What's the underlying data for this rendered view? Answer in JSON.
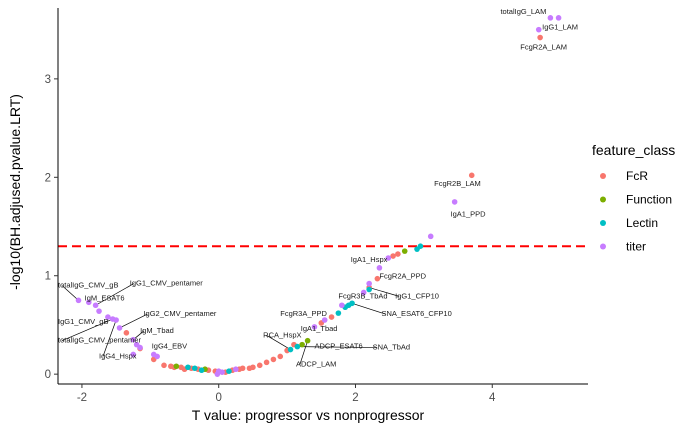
{
  "chart_data": {
    "type": "scatter",
    "title": "",
    "xlabel": "T value: progressor vs nonprogressor",
    "ylabel": "-log10(BH.adjused.pvalue.LRT)",
    "xlim": [
      -2.35,
      5.4
    ],
    "ylim": [
      -0.1,
      3.72
    ],
    "x_ticks": [
      -2,
      0,
      2,
      4
    ],
    "y_ticks": [
      0,
      1,
      2,
      3
    ],
    "grid": false,
    "threshold": {
      "y": 1.3,
      "color": "#ff0000",
      "style": "dashed"
    },
    "legend": {
      "title": "feature_class",
      "position": "right",
      "entries": [
        {
          "name": "FcR",
          "color": "#f8766d"
        },
        {
          "name": "Function",
          "color": "#7cae00"
        },
        {
          "name": "Lectin",
          "color": "#00bfc4"
        },
        {
          "name": "titer",
          "color": "#c77cff"
        }
      ]
    },
    "series": [
      {
        "name": "FcR",
        "points": [
          [
            4.7,
            3.42
          ],
          [
            3.7,
            2.02
          ],
          [
            2.62,
            1.22
          ],
          [
            2.55,
            1.2
          ],
          [
            2.32,
            0.97
          ],
          [
            2.2,
            0.88
          ],
          [
            1.65,
            0.58
          ],
          [
            1.5,
            0.52
          ],
          [
            1.1,
            0.3
          ],
          [
            1.0,
            0.24
          ],
          [
            0.8,
            0.15
          ],
          [
            0.7,
            0.12
          ],
          [
            0.6,
            0.09
          ],
          [
            0.45,
            0.06
          ],
          [
            0.3,
            0.05
          ],
          [
            0.2,
            0.04
          ],
          [
            0.1,
            0.02
          ],
          [
            -0.05,
            0.03
          ],
          [
            -0.15,
            0.04
          ],
          [
            -0.3,
            0.05
          ],
          [
            -0.4,
            0.06
          ],
          [
            -0.5,
            0.05
          ],
          [
            -0.55,
            0.07
          ],
          [
            -0.65,
            0.07
          ],
          [
            -0.7,
            0.08
          ],
          [
            -0.8,
            0.09
          ],
          [
            -0.95,
            0.15
          ],
          [
            -1.15,
            0.26
          ],
          [
            -1.35,
            0.42
          ],
          [
            0.5,
            0.07
          ],
          [
            0.35,
            0.06
          ],
          [
            0.9,
            0.18
          ]
        ]
      },
      {
        "name": "Function",
        "points": [
          [
            2.72,
            1.25
          ],
          [
            1.3,
            0.34
          ],
          [
            1.22,
            0.3
          ],
          [
            -0.62,
            0.08
          ],
          [
            -0.2,
            0.05
          ]
        ]
      },
      {
        "name": "Lectin",
        "points": [
          [
            2.95,
            1.3
          ],
          [
            2.9,
            1.27
          ],
          [
            2.2,
            0.86
          ],
          [
            1.95,
            0.72
          ],
          [
            1.9,
            0.7
          ],
          [
            1.85,
            0.68
          ],
          [
            1.75,
            0.62
          ],
          [
            1.15,
            0.28
          ],
          [
            1.05,
            0.25
          ],
          [
            -0.35,
            0.06
          ],
          [
            -0.25,
            0.04
          ],
          [
            -0.45,
            0.07
          ],
          [
            0.15,
            0.03
          ]
        ]
      },
      {
        "name": "titer",
        "points": [
          [
            4.85,
            3.62
          ],
          [
            4.97,
            3.62
          ],
          [
            4.68,
            3.5
          ],
          [
            3.45,
            1.75
          ],
          [
            3.1,
            1.4
          ],
          [
            2.48,
            1.18
          ],
          [
            2.35,
            1.08
          ],
          [
            2.2,
            0.92
          ],
          [
            2.12,
            0.83
          ],
          [
            1.8,
            0.7
          ],
          [
            1.55,
            0.55
          ],
          [
            1.4,
            0.48
          ],
          [
            0.25,
            0.05
          ],
          [
            0.05,
            0.02
          ],
          [
            -0.02,
            0.0
          ],
          [
            0.0,
            0.03
          ],
          [
            -2.05,
            0.75
          ],
          [
            -1.9,
            0.73
          ],
          [
            -1.8,
            0.7
          ],
          [
            -1.75,
            0.64
          ],
          [
            -1.62,
            0.58
          ],
          [
            -1.55,
            0.56
          ],
          [
            -1.5,
            0.55
          ],
          [
            -1.45,
            0.47
          ],
          [
            -1.25,
            0.35
          ],
          [
            -1.2,
            0.3
          ],
          [
            -1.15,
            0.27
          ],
          [
            -0.95,
            0.2
          ],
          [
            -0.9,
            0.18
          ],
          [
            -1.25,
            0.2
          ]
        ]
      }
    ],
    "annotations": [
      {
        "text": "totalIgG_LAM",
        "x": 4.85,
        "y": 3.62,
        "tx": 4.12,
        "ty": 3.66,
        "leader": false
      },
      {
        "text": "IgG1_LAM",
        "x": 4.97,
        "y": 3.62,
        "tx": 4.73,
        "ty": 3.5,
        "leader": false
      },
      {
        "text": "FcgR2A_LAM",
        "x": 4.68,
        "y": 3.5,
        "tx": 4.41,
        "ty": 3.3,
        "leader": false
      },
      {
        "text": "FcgR2B_LAM",
        "x": 3.7,
        "y": 2.02,
        "tx": 3.15,
        "ty": 1.91,
        "leader": false
      },
      {
        "text": "IgA1_PPD",
        "x": 3.45,
        "y": 1.75,
        "tx": 3.39,
        "ty": 1.6,
        "leader": false
      },
      {
        "text": "IgA1_Hspx",
        "x": 2.48,
        "y": 1.18,
        "tx": 1.93,
        "ty": 1.14,
        "leader": false
      },
      {
        "text": "FcgR2A_PPD",
        "x": 2.32,
        "y": 0.97,
        "tx": 2.35,
        "ty": 0.97,
        "leader": false
      },
      {
        "text": "IgG1_CFP10",
        "x": 2.2,
        "y": 0.88,
        "tx": 2.58,
        "ty": 0.77,
        "leader": true
      },
      {
        "text": "FcgR3B_TbAd",
        "x": 1.9,
        "y": 0.7,
        "tx": 1.75,
        "ty": 0.77,
        "leader": false
      },
      {
        "text": "SNA_ESAT6_CFP10",
        "x": 1.95,
        "y": 0.72,
        "tx": 2.38,
        "ty": 0.59,
        "leader": true
      },
      {
        "text": "FcgR3A_PPD",
        "x": 1.55,
        "y": 0.55,
        "tx": 0.9,
        "ty": 0.59,
        "leader": false
      },
      {
        "text": "IgA1_Tbad",
        "x": 1.4,
        "y": 0.48,
        "tx": 1.2,
        "ty": 0.44,
        "leader": false
      },
      {
        "text": "RCA_HspX",
        "x": 1.05,
        "y": 0.25,
        "tx": 0.65,
        "ty": 0.37,
        "leader": true
      },
      {
        "text": "ADCP_ESAT6",
        "x": 1.22,
        "y": 0.3,
        "tx": 1.4,
        "ty": 0.26,
        "leader": false
      },
      {
        "text": "SNA_TbAd",
        "x": 1.15,
        "y": 0.28,
        "tx": 2.25,
        "ty": 0.25,
        "leader": true
      },
      {
        "text": "ADCP_LAM",
        "x": 1.3,
        "y": 0.34,
        "tx": 1.13,
        "ty": 0.08,
        "leader": true
      },
      {
        "text": "totalIgG_CMV_gB",
        "x": -2.05,
        "y": 0.75,
        "tx": -2.35,
        "ty": 0.88,
        "leader": true
      },
      {
        "text": "IgG1_CMV_pentamer",
        "x": -1.8,
        "y": 0.7,
        "tx": -1.3,
        "ty": 0.9,
        "leader": true
      },
      {
        "text": "IgM_ESAT6",
        "x": -1.9,
        "y": 0.73,
        "tx": -1.96,
        "ty": 0.75,
        "leader": false
      },
      {
        "text": "IgG2_CMV_pentamer",
        "x": -1.45,
        "y": 0.47,
        "tx": -1.1,
        "ty": 0.59,
        "leader": true
      },
      {
        "text": "IgG1_CMV_gB",
        "x": -1.62,
        "y": 0.58,
        "tx": -2.35,
        "ty": 0.51,
        "leader": false
      },
      {
        "text": "IgM_Tbad",
        "x": -1.25,
        "y": 0.35,
        "tx": -1.15,
        "ty": 0.42,
        "leader": true
      },
      {
        "text": "totalIgG_CMV_pentamer",
        "x": -1.55,
        "y": 0.56,
        "tx": -2.35,
        "ty": 0.32,
        "leader": true
      },
      {
        "text": "IgG4_EBV",
        "x": -1.2,
        "y": 0.3,
        "tx": -0.98,
        "ty": 0.26,
        "leader": false
      },
      {
        "text": "IgG4_Hspx",
        "x": -1.5,
        "y": 0.55,
        "tx": -1.75,
        "ty": 0.16,
        "leader": true
      }
    ]
  }
}
